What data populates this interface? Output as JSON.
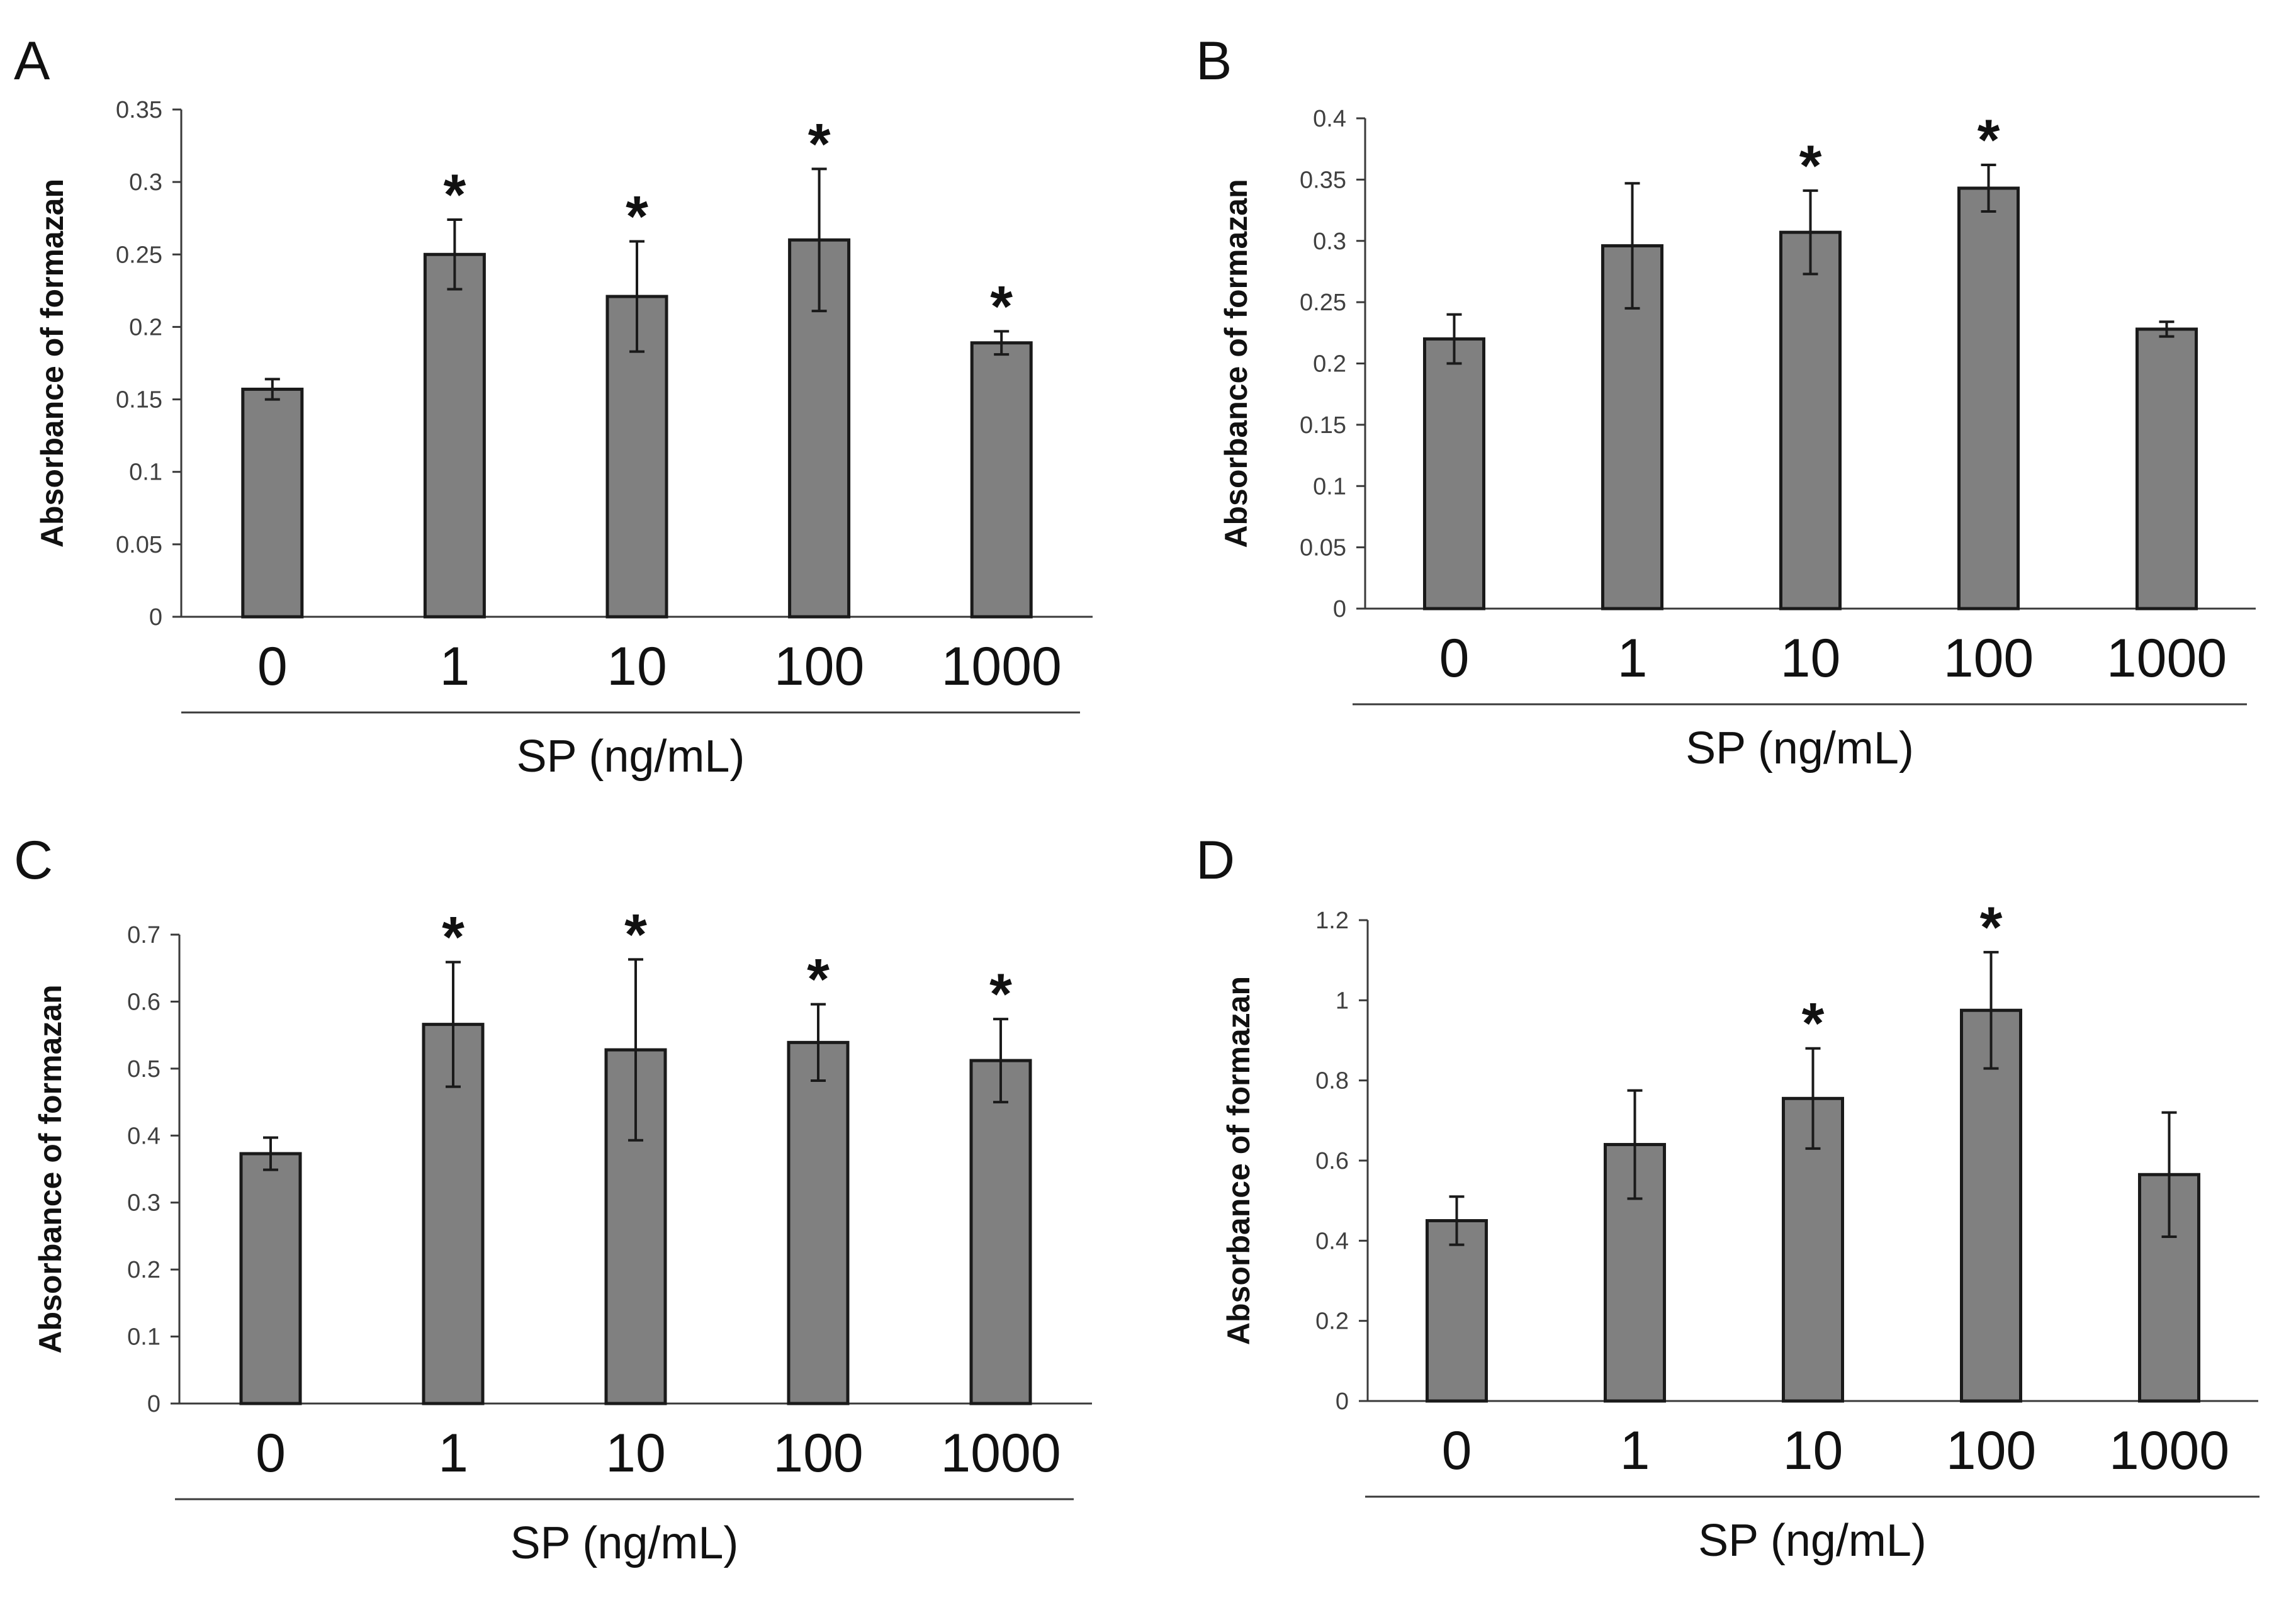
{
  "chart_data": [
    {
      "panel": "A",
      "type": "bar",
      "categories": [
        "0",
        "1",
        "10",
        "100",
        "1000"
      ],
      "values": [
        0.157,
        0.25,
        0.221,
        0.26,
        0.189
      ],
      "errors": [
        0.007,
        0.024,
        0.038,
        0.049,
        0.008
      ],
      "significant": [
        false,
        true,
        true,
        true,
        true
      ],
      "significance_marker": "*",
      "xlabel": "SP (ng/mL)",
      "ylabel": "Absorbance of formazan",
      "ylim": [
        0,
        0.35
      ],
      "yticks": [
        0,
        0.05,
        0.1,
        0.15,
        0.2,
        0.25,
        0.3,
        0.35
      ],
      "ytick_labels": [
        "0",
        "0.05",
        "0.1",
        "0.15",
        "0.2",
        "0.25",
        "0.3",
        "0.35"
      ]
    },
    {
      "panel": "B",
      "type": "bar",
      "categories": [
        "0",
        "1",
        "10",
        "100",
        "1000"
      ],
      "values": [
        0.22,
        0.296,
        0.307,
        0.343,
        0.228
      ],
      "errors": [
        0.02,
        0.051,
        0.034,
        0.019,
        0.006
      ],
      "significant": [
        false,
        false,
        true,
        true,
        false
      ],
      "significance_marker": "*",
      "xlabel": "SP (ng/mL)",
      "ylabel": "Absorbance of formazan",
      "ylim": [
        0,
        0.4
      ],
      "yticks": [
        0,
        0.05,
        0.1,
        0.15,
        0.2,
        0.25,
        0.3,
        0.35,
        0.4
      ],
      "ytick_labels": [
        "0",
        "0.05",
        "0.1",
        "0.15",
        "0.2",
        "0.25",
        "0.3",
        "0.35",
        "0.4"
      ]
    },
    {
      "panel": "C",
      "type": "bar",
      "categories": [
        "0",
        "1",
        "10",
        "100",
        "1000"
      ],
      "values": [
        0.373,
        0.566,
        0.528,
        0.539,
        0.512
      ],
      "errors": [
        0.024,
        0.093,
        0.135,
        0.057,
        0.062
      ],
      "significant": [
        false,
        true,
        true,
        true,
        true
      ],
      "significance_marker": "*",
      "xlabel": "SP (ng/mL)",
      "ylabel": "Absorbance of formazan",
      "ylim": [
        0,
        0.7
      ],
      "yticks": [
        0,
        0.1,
        0.2,
        0.3,
        0.4,
        0.5,
        0.6,
        0.7
      ],
      "ytick_labels": [
        "0",
        "0.1",
        "0.2",
        "0.3",
        "0.4",
        "0.5",
        "0.6",
        "0.7"
      ]
    },
    {
      "panel": "D",
      "type": "bar",
      "categories": [
        "0",
        "1",
        "10",
        "100",
        "1000"
      ],
      "values": [
        0.45,
        0.64,
        0.755,
        0.975,
        0.565
      ],
      "errors": [
        0.06,
        0.135,
        0.125,
        0.145,
        0.155
      ],
      "significant": [
        false,
        false,
        true,
        true,
        false
      ],
      "significance_marker": "*",
      "xlabel": "SP (ng/mL)",
      "ylabel": "Absorbance of formazan",
      "ylim": [
        0,
        1.2
      ],
      "yticks": [
        0,
        0.2,
        0.4,
        0.6,
        0.8,
        1,
        1.2
      ],
      "ytick_labels": [
        "0",
        "0.2",
        "0.4",
        "0.6",
        "0.8",
        "1",
        "1.2"
      ]
    }
  ]
}
